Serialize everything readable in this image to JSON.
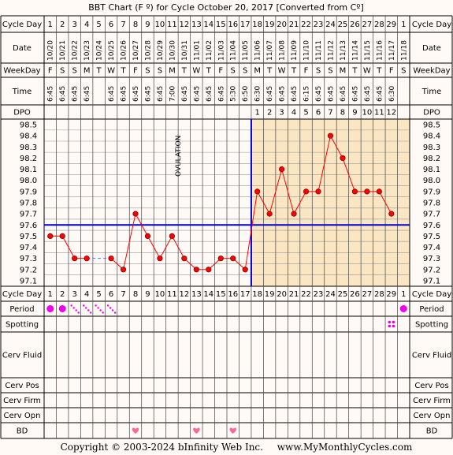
{
  "header": {
    "title": "BBT Chart (F º) for Cycle October 20, 2017  [Converted from Cº]",
    "copyright": "Copyright © 2003-2024 bInfinity Web Inc.",
    "site": "www.MyMonthlyCycles.com"
  },
  "row_labels": {
    "cycle_day": "Cycle Day",
    "date": "Date",
    "weekday": "WeekDay",
    "time": "Time",
    "dpo": "DPO",
    "period": "Period",
    "spotting": "Spotting",
    "cerv_fluid": "Cerv Fluid",
    "cerv_pos": "Cerv Pos",
    "cerv_firm": "Cerv Firm",
    "cerv_opn": "Cerv Opn",
    "bd": "BD"
  },
  "ovulation_label": "OVULATION",
  "colors": {
    "temp_line": "#ff0000",
    "coverline": "#0000cc",
    "ovulation_line": "#0000cc",
    "luteal_fill": "#fbe6c4",
    "period": "#ee00ee",
    "bd_heart": "#ff6699"
  },
  "cycle_days": [
    "1",
    "2",
    "3",
    "4",
    "5",
    "6",
    "7",
    "8",
    "9",
    "10",
    "11",
    "12",
    "13",
    "14",
    "15",
    "16",
    "17",
    "18",
    "19",
    "20",
    "21",
    "22",
    "23",
    "24",
    "25",
    "26",
    "27",
    "28",
    "29",
    "1"
  ],
  "dates": [
    "10/20",
    "10/21",
    "10/22",
    "10/23",
    "10/24",
    "10/25",
    "10/26",
    "10/27",
    "10/28",
    "10/29",
    "10/30",
    "10/31",
    "11/01",
    "11/02",
    "11/03",
    "11/04",
    "11/05",
    "11/06",
    "11/07",
    "11/08",
    "11/09",
    "11/10",
    "11/11",
    "11/12",
    "11/13",
    "11/14",
    "11/15",
    "11/16",
    "11/17",
    "11/18"
  ],
  "weekdays": [
    "F",
    "S",
    "S",
    "M",
    "T",
    "W",
    "T",
    "F",
    "S",
    "S",
    "M",
    "T",
    "W",
    "T",
    "F",
    "S",
    "S",
    "M",
    "T",
    "W",
    "T",
    "F",
    "S",
    "S",
    "M",
    "T",
    "W",
    "T",
    "F",
    "S"
  ],
  "times": [
    "6:45",
    "6:45",
    "6:45",
    "6:45",
    "",
    "6:45",
    "6:45",
    "6:45",
    "6:45",
    "6:45",
    "7:00",
    "6:45",
    "6:45",
    "6:45",
    "6:45",
    "5:30",
    "6:50",
    "6:30",
    "6:45",
    "6:45",
    "6:45",
    "6:15",
    "6:45",
    "6:45",
    "6:45",
    "6:45",
    "6:45",
    "6:45",
    "6:30",
    ""
  ],
  "dpo": [
    "",
    "",
    "",
    "",
    "",
    "",
    "",
    "",
    "",
    "",
    "",
    "",
    "",
    "",
    "",
    "",
    "",
    "1",
    "2",
    "3",
    "4",
    "5",
    "6",
    "7",
    "8",
    "9",
    "10",
    "11",
    "12",
    ""
  ],
  "chart_data": {
    "type": "line",
    "title": "BBT Chart (F º) for Cycle October 20, 2017  [Converted from Cº]",
    "x_label": "Cycle Day",
    "y_label": "",
    "y_ticks": [
      "98.5",
      "98.4",
      "98.3",
      "98.2",
      "98.1",
      "98.0",
      "97.9",
      "97.8",
      "97.7",
      "97.6",
      "97.5",
      "97.4",
      "97.3",
      "97.2",
      "97.1"
    ],
    "ylim": [
      97.05,
      98.55
    ],
    "series": [
      {
        "values": [
          97.5,
          97.5,
          97.3,
          97.3,
          null,
          97.3,
          97.2,
          97.7,
          97.5,
          97.3,
          97.5,
          97.3,
          97.2,
          97.2,
          97.3,
          97.3,
          97.2,
          97.9,
          97.7,
          98.1,
          97.7,
          97.9,
          97.9,
          98.4,
          98.2,
          97.9,
          97.9,
          97.9,
          97.7,
          null
        ]
      }
    ],
    "interpolated_gap": {
      "from_day_index": 3,
      "to_day_index": 5
    },
    "coverline": 97.6,
    "ovulation_after_day_index": 16,
    "grid": true
  },
  "period": [
    "dot",
    "dot",
    "light",
    "light",
    "light",
    "light",
    "",
    "",
    "",
    "",
    "",
    "",
    "",
    "",
    "",
    "",
    "",
    "",
    "",
    "",
    "",
    "",
    "",
    "",
    "",
    "",
    "",
    "",
    "",
    "dot"
  ],
  "spotting": [
    "",
    "",
    "",
    "",
    "",
    "",
    "",
    "",
    "",
    "",
    "",
    "",
    "",
    "",
    "",
    "",
    "",
    "",
    "",
    "",
    "",
    "",
    "",
    "",
    "",
    "",
    "",
    "",
    "spot",
    ""
  ],
  "bd": [
    "",
    "",
    "",
    "",
    "",
    "",
    "",
    "heart",
    "",
    "",
    "",
    "",
    "heart",
    "",
    "",
    "heart",
    "",
    "",
    "",
    "",
    "",
    "",
    "",
    "",
    "",
    "",
    "",
    "",
    "",
    ""
  ]
}
